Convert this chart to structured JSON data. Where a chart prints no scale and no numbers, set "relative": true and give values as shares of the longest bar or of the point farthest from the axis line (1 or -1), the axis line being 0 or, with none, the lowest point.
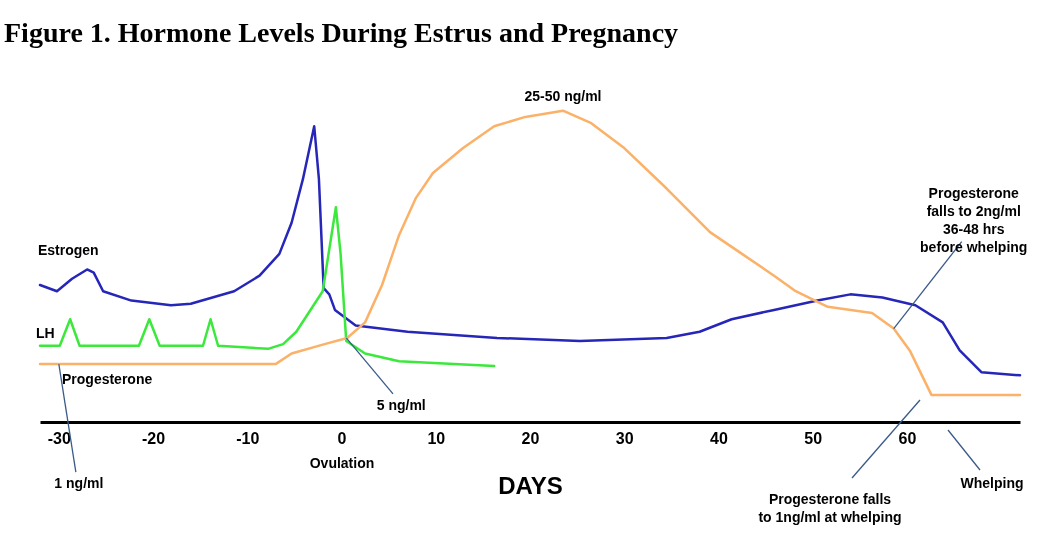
{
  "chart_data": {
    "type": "line",
    "title": "Figure 1.  Hormone Levels During Estrus and Pregnancy",
    "xlabel": "DAYS",
    "relative": true,
    "grid": false,
    "marker": "none",
    "line_style": "solid",
    "xlim": [
      -32,
      72
    ],
    "xticks": [
      -30,
      -20,
      -10,
      0,
      10,
      20,
      30,
      40,
      50,
      60
    ],
    "series": [
      {
        "name": "Estrogen",
        "color": "#2626b8",
        "x": [
          -32,
          -30.2,
          -28.6,
          -27,
          -26.3,
          -25.3,
          -22.3,
          -18.1,
          -16,
          -11.4,
          -8.7,
          -6.6,
          -5.3,
          -4.1,
          -2.9,
          -2.4,
          -1.9,
          -1.3,
          -0.7,
          1.5,
          7,
          16.5,
          25.3,
          34.5,
          38,
          41.4,
          45.9,
          50.5,
          54,
          57.4,
          60.9,
          63.8,
          65.6,
          67.9,
          72
        ],
        "values": [
          0.44,
          0.42,
          0.46,
          0.49,
          0.48,
          0.42,
          0.39,
          0.375,
          0.38,
          0.42,
          0.47,
          0.54,
          0.64,
          0.78,
          0.95,
          0.78,
          0.43,
          0.41,
          0.36,
          0.31,
          0.29,
          0.27,
          0.26,
          0.27,
          0.29,
          0.33,
          0.36,
          0.39,
          0.41,
          0.4,
          0.375,
          0.32,
          0.23,
          0.16,
          0.15
        ]
      },
      {
        "name": "LH",
        "color": "#3be83b",
        "x": [
          -32,
          -29.9,
          -28.8,
          -27.8,
          -21.5,
          -20.4,
          -19.3,
          -14.7,
          -13.9,
          -13.1,
          -7.8,
          -6.2,
          -4.8,
          -2,
          -0.6,
          -0.1,
          0.5,
          2.5,
          6.1,
          16.2
        ],
        "values": [
          0.245,
          0.245,
          0.33,
          0.245,
          0.245,
          0.33,
          0.245,
          0.245,
          0.33,
          0.245,
          0.235,
          0.25,
          0.29,
          0.42,
          0.69,
          0.54,
          0.26,
          0.22,
          0.195,
          0.18
        ]
      },
      {
        "name": "Progesterone",
        "color": "#fbb168",
        "x": [
          -32,
          -7,
          -5.3,
          -1.8,
          0.6,
          2.5,
          4.3,
          6.1,
          7.9,
          9.7,
          12.9,
          16.2,
          19.5,
          23.5,
          26.5,
          30,
          34.5,
          39.1,
          42.5,
          45.9,
          48.2,
          51.6,
          56.3,
          58.6,
          60.3,
          62.6,
          72
        ],
        "values": [
          0.186,
          0.186,
          0.22,
          0.25,
          0.27,
          0.32,
          0.44,
          0.6,
          0.72,
          0.8,
          0.88,
          0.95,
          0.98,
          1.0,
          0.96,
          0.88,
          0.75,
          0.61,
          0.54,
          0.47,
          0.42,
          0.37,
          0.35,
          0.3,
          0.23,
          0.087,
          0.087
        ]
      }
    ],
    "annotations": [
      {
        "text": "25-50 ng/ml",
        "x": 23.5,
        "y": 1.0
      },
      {
        "text": "5 ng/ml",
        "x": 0.5,
        "y": 0.27
      },
      {
        "text": "1 ng/ml",
        "x": -30,
        "y": 0.186
      },
      {
        "text": "Progesterone\nfalls to 2ng/ml\n36-48 hrs\nbefore whelping",
        "x": 58.6,
        "y": 0.3
      },
      "Progesterone falls\nto 1ng/ml at whelping",
      "Whelping",
      "Ovulation"
    ]
  }
}
